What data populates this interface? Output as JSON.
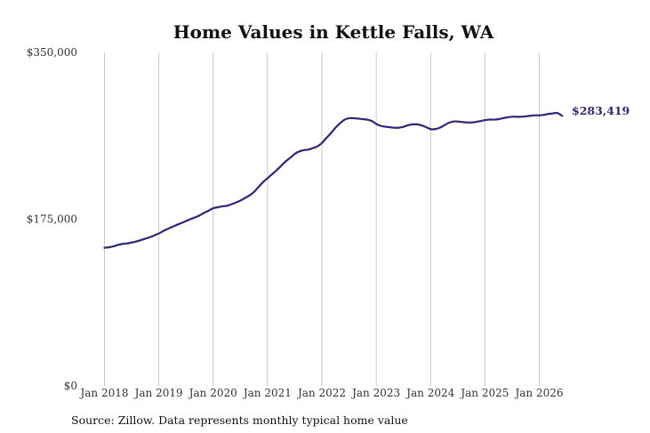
{
  "chart_data": {
    "type": "line",
    "title": "Home Values in Kettle Falls, WA",
    "xlabel": "",
    "ylabel": "",
    "ylim": [
      0,
      350000
    ],
    "y_ticks": [
      {
        "value": 0,
        "label": "$0"
      },
      {
        "value": 175000,
        "label": "$175,000"
      },
      {
        "value": 350000,
        "label": "$350,000"
      }
    ],
    "x_ticks": [
      {
        "value": 2018.0,
        "label": "Jan 2018"
      },
      {
        "value": 2019.0,
        "label": "Jan 2019"
      },
      {
        "value": 2020.0,
        "label": "Jan 2020"
      },
      {
        "value": 2021.0,
        "label": "Jan 2021"
      },
      {
        "value": 2022.0,
        "label": "Jan 2022"
      },
      {
        "value": 2023.0,
        "label": "Jan 2023"
      },
      {
        "value": 2024.0,
        "label": "Jan 2024"
      },
      {
        "value": 2025.0,
        "label": "Jan 2025"
      },
      {
        "value": 2026.0,
        "label": "Jan 2026"
      }
    ],
    "xlim": [
      2017.8,
      2026.75
    ],
    "grid": "vertical",
    "line_color": "#2b2878",
    "series": [
      {
        "name": "",
        "x": [
          2018.0,
          2018.08,
          2018.17,
          2018.25,
          2018.33,
          2018.42,
          2018.5,
          2018.58,
          2018.67,
          2018.75,
          2018.83,
          2018.92,
          2019.0,
          2019.08,
          2019.17,
          2019.25,
          2019.33,
          2019.42,
          2019.5,
          2019.58,
          2019.67,
          2019.75,
          2019.83,
          2019.92,
          2020.0,
          2020.08,
          2020.17,
          2020.25,
          2020.33,
          2020.42,
          2020.5,
          2020.58,
          2020.67,
          2020.75,
          2020.83,
          2020.92,
          2021.0,
          2021.08,
          2021.17,
          2021.25,
          2021.33,
          2021.42,
          2021.5,
          2021.58,
          2021.67,
          2021.75,
          2021.83,
          2021.92,
          2022.0,
          2022.08,
          2022.17,
          2022.25,
          2022.33,
          2022.42,
          2022.5,
          2022.58,
          2022.67,
          2022.75,
          2022.83,
          2022.92,
          2023.0,
          2023.08,
          2023.17,
          2023.25,
          2023.33,
          2023.42,
          2023.5,
          2023.58,
          2023.67,
          2023.75,
          2023.83,
          2023.92,
          2024.0,
          2024.08,
          2024.17,
          2024.25,
          2024.33,
          2024.42,
          2024.5,
          2024.58,
          2024.67,
          2024.75,
          2024.83,
          2024.92,
          2025.0,
          2025.08,
          2025.17,
          2025.25,
          2025.33,
          2025.42,
          2025.5,
          2025.58,
          2025.67,
          2025.75,
          2025.83,
          2025.92,
          2026.0,
          2026.08,
          2026.17,
          2026.25,
          2026.33,
          2026.42
        ],
        "values": [
          145000,
          145500,
          146500,
          148000,
          149000,
          149500,
          150500,
          151500,
          153000,
          154500,
          156000,
          158000,
          160000,
          162500,
          165000,
          167000,
          169000,
          171000,
          173000,
          175000,
          177000,
          179000,
          181500,
          184000,
          186500,
          187500,
          188500,
          189000,
          190500,
          192500,
          194500,
          197000,
          200000,
          203500,
          208500,
          214000,
          218000,
          222000,
          226500,
          231000,
          235500,
          239500,
          243500,
          246000,
          247500,
          248000,
          249500,
          251500,
          255000,
          260000,
          265500,
          271000,
          275500,
          279500,
          281000,
          281000,
          280500,
          280000,
          279500,
          278000,
          275000,
          273000,
          272000,
          271500,
          271000,
          271000,
          272000,
          273500,
          274500,
          274500,
          273500,
          271500,
          269500,
          269500,
          271000,
          273500,
          276000,
          277500,
          277500,
          277000,
          276500,
          276500,
          277000,
          278000,
          279000,
          279500,
          279500,
          280000,
          281000,
          282000,
          282500,
          282500,
          282500,
          283000,
          283500,
          284000,
          284000,
          284500,
          285500,
          286000,
          286500,
          283419
        ]
      }
    ],
    "end_label": "$283,419",
    "source": "Source: Zillow. Data represents monthly typical home value"
  }
}
